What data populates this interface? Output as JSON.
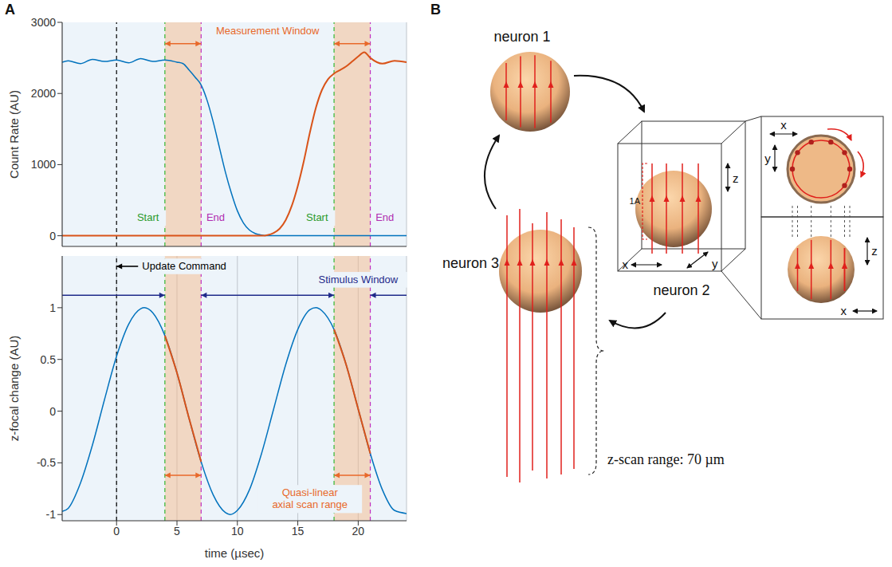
{
  "panel_labels": [
    "A",
    "B"
  ],
  "chart_data": [
    {
      "type": "line",
      "x": [
        -4.5,
        -4,
        -3,
        -2,
        -1,
        0,
        1,
        2,
        3,
        4,
        5,
        5.5,
        6,
        6.5,
        7,
        7.5,
        8,
        8.5,
        9,
        9.5,
        10,
        10.5,
        11,
        11.5,
        12,
        12.5,
        13,
        13.5,
        14,
        14.5,
        15,
        15.5,
        16,
        16.5,
        17,
        17.5,
        18,
        18.5,
        19,
        19.5,
        20,
        20.5,
        21,
        22,
        23,
        24
      ],
      "series": [
        {
          "color": "#0072bd",
          "values": [
            2440,
            2460,
            2420,
            2480,
            2450,
            2470,
            2430,
            2490,
            2450,
            2470,
            2440,
            2420,
            2330,
            2230,
            2120,
            1900,
            1600,
            1250,
            900,
            600,
            350,
            180,
            80,
            30,
            10,
            0,
            0,
            0,
            0,
            0,
            0,
            0,
            0,
            0,
            0,
            0,
            0,
            0,
            0,
            0,
            0,
            0,
            0,
            0,
            0,
            0
          ]
        },
        {
          "color": "#d95319",
          "values": [
            0,
            0,
            0,
            0,
            0,
            0,
            0,
            0,
            0,
            0,
            0,
            0,
            0,
            0,
            0,
            0,
            0,
            0,
            0,
            0,
            0,
            0,
            0,
            0,
            0,
            10,
            40,
            100,
            220,
            420,
            700,
            1050,
            1450,
            1800,
            2050,
            2200,
            2280,
            2330,
            2380,
            2450,
            2520,
            2580,
            2500,
            2420,
            2460,
            2440
          ]
        }
      ],
      "xlim": [
        -4.5,
        24
      ],
      "xticks": [
        0,
        5,
        10,
        15,
        20
      ],
      "ylim": [
        -150,
        3000
      ],
      "yticks": [
        0,
        1000,
        2000,
        3000
      ],
      "ylabel": "Count Rate (AU)",
      "grid": true,
      "tick_labels": "y",
      "bands": {
        "color": "#f5b98c",
        "ranges": [
          [
            4,
            7
          ],
          [
            18,
            21
          ]
        ]
      },
      "vlines": [
        {
          "x": 0,
          "color": "#000000",
          "line_style": "dashed"
        },
        {
          "x": 4,
          "color": "#33b833",
          "line_style": "dashed"
        },
        {
          "x": 7,
          "color": "#c030c0",
          "line_style": "dashed"
        },
        {
          "x": 18,
          "color": "#33b833",
          "line_style": "dashed"
        },
        {
          "x": 21,
          "color": "#c030c0",
          "line_style": "dashed"
        }
      ],
      "arrows": [
        {
          "x": [
            4,
            7
          ],
          "y": 2700,
          "color": "#e8692a",
          "marker": "both"
        },
        {
          "x": [
            18,
            21
          ],
          "y": 2700,
          "color": "#e8692a",
          "marker": "both"
        }
      ],
      "annotations": [
        {
          "text": "Measurement Window",
          "x": 12.5,
          "y": 2880,
          "color": "#e8692a"
        },
        {
          "text": "Start",
          "x": 2.6,
          "y": 250,
          "color": "#2a9a2a"
        },
        {
          "text": "End",
          "x": 8.2,
          "y": 250,
          "color": "#b02cb0"
        },
        {
          "text": "Start",
          "x": 16.6,
          "y": 250,
          "color": "#2a9a2a"
        },
        {
          "text": "End",
          "x": 22.2,
          "y": 250,
          "color": "#b02cb0"
        }
      ]
    },
    {
      "type": "line",
      "x": [
        -4.5,
        -4,
        -3,
        -2,
        -1,
        0,
        1,
        2,
        2.3,
        3,
        4,
        5,
        6,
        7,
        8,
        9,
        9.4,
        10,
        11,
        12,
        13,
        14,
        15,
        16,
        16.5,
        17,
        18,
        19,
        20,
        21,
        22,
        23,
        24
      ],
      "series": [
        {
          "color": "#0072bd",
          "values": [
            -0.97,
            -0.94,
            -0.7,
            -0.33,
            0.11,
            0.53,
            0.84,
            0.99,
            1,
            0.95,
            0.73,
            0.37,
            -0.07,
            -0.49,
            -0.81,
            -0.98,
            -1,
            -0.96,
            -0.76,
            -0.41,
            0.02,
            0.45,
            0.79,
            0.98,
            1,
            0.97,
            0.79,
            0.45,
            0.02,
            -0.41,
            -0.76,
            -0.96,
            -0.99
          ]
        },
        {
          "color": "#d95319",
          "values": [
            null,
            null,
            null,
            null,
            null,
            null,
            null,
            null,
            null,
            null,
            0.73,
            0.37,
            -0.07,
            -0.49,
            null,
            null,
            null,
            null,
            null,
            null,
            null,
            null,
            null,
            null,
            null,
            null,
            0.79,
            0.45,
            0.02,
            -0.41,
            null,
            null,
            null
          ]
        }
      ],
      "xlim": [
        -4.5,
        24
      ],
      "xticks": [
        0,
        5,
        10,
        15,
        20
      ],
      "ylim": [
        -1.06,
        1.5
      ],
      "yticks": [
        -1,
        -0.5,
        0,
        0.5,
        1
      ],
      "xlabel": "time (µsec)",
      "ylabel": "z-focal change (AU)",
      "grid": true,
      "bands": {
        "color": "#f5b98c",
        "ranges": [
          [
            4,
            7
          ],
          [
            18,
            21
          ]
        ]
      },
      "vlines": [
        {
          "x": 0,
          "color": "#000000",
          "line_style": "dashed"
        },
        {
          "x": 4,
          "color": "#33b833",
          "line_style": "dashed"
        },
        {
          "x": 7,
          "color": "#c030c0",
          "line_style": "dashed"
        },
        {
          "x": 18,
          "color": "#33b833",
          "line_style": "dashed"
        },
        {
          "x": 21,
          "color": "#c030c0",
          "line_style": "dashed"
        }
      ],
      "arrows": [
        {
          "x": [
            1.8,
            0
          ],
          "y": 1.4,
          "color": "#000000",
          "marker": "end"
        },
        {
          "x": [
            -4.5,
            4
          ],
          "y": 1.12,
          "color": "#1f2a8a",
          "marker": "end"
        },
        {
          "x": [
            7,
            18
          ],
          "y": 1.12,
          "color": "#1f2a8a",
          "marker": "both"
        },
        {
          "x": [
            21,
            24
          ],
          "y": 1.12,
          "color": "#1f2a8a",
          "marker": "start"
        },
        {
          "x": [
            4,
            7
          ],
          "y": -0.62,
          "color": "#e8692a",
          "marker": "both"
        },
        {
          "x": [
            18,
            21
          ],
          "y": -0.62,
          "color": "#e8692a",
          "marker": "both"
        }
      ],
      "annotations": [
        {
          "text": "Update Command",
          "x": 5.6,
          "y": 1.4,
          "color": "#000000"
        },
        {
          "text": "Stimulus Window",
          "x": 20,
          "y": 1.27,
          "color": "#1f2a8a"
        },
        {
          "text": "Quasi-linear axial scan range",
          "x": 16,
          "y": -0.85,
          "color": "#e8692a"
        }
      ]
    }
  ],
  "diagram": {
    "neuron_labels": [
      "neuron 1",
      "neuron 2",
      "neuron 3"
    ],
    "bracket_label": "1A",
    "cube_axis_labels": [
      "x",
      "y",
      "z"
    ],
    "top_view_axis_labels": [
      "x",
      "y"
    ],
    "side_view_axis_labels": [
      "z",
      "x"
    ],
    "z_scan_label": "z-scan range: 70 µm"
  }
}
